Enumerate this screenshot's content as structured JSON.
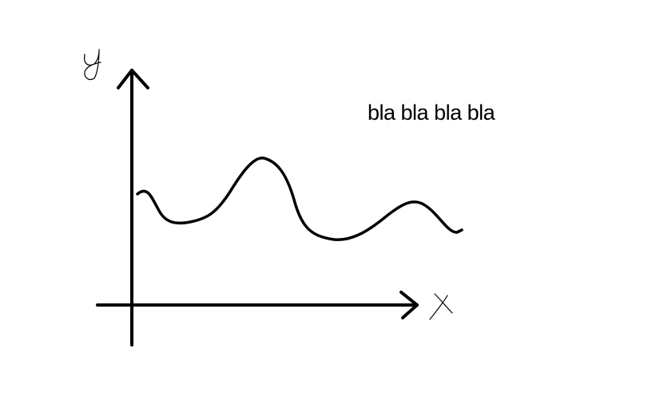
{
  "annotation": {
    "text": "bla bla bla bla"
  },
  "axes": {
    "x_label": "x",
    "y_label": "y"
  },
  "colors": {
    "ink": "#000000",
    "background": "#ffffff"
  }
}
